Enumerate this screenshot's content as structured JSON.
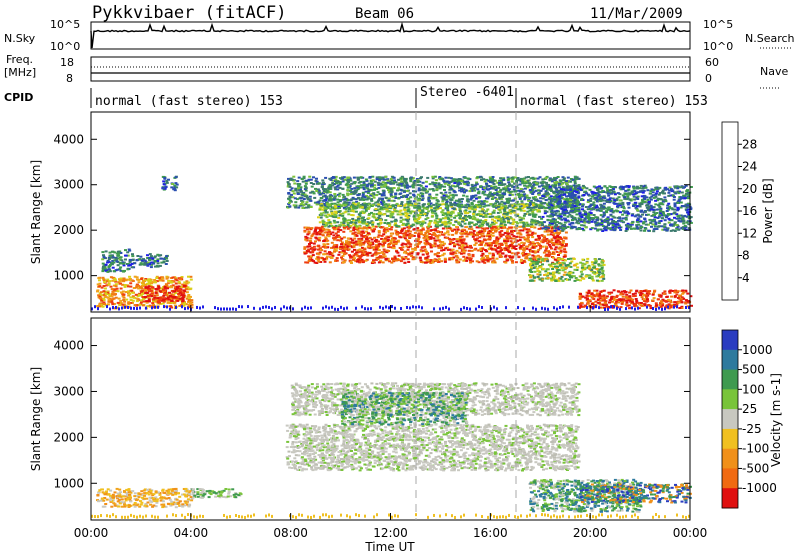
{
  "header": {
    "station": "Pykkvibaer (fitACF)",
    "beam": "Beam 06",
    "date": "11/Mar/2009"
  },
  "top_panel": {
    "left_label": "N.Sky",
    "right_label": "N.Search",
    "left_ticks": [
      "10^5",
      "10^0"
    ],
    "right_ticks": [
      "10^5",
      "10^0"
    ]
  },
  "freq_panel": {
    "left_label_line1": "Freq.",
    "left_label_line2": "[MHz]",
    "right_label": "Nave",
    "left_ticks": [
      "18",
      "8"
    ],
    "right_ticks": [
      "60",
      "0"
    ]
  },
  "cpid": {
    "label": "CPID",
    "segments": [
      {
        "text": "normal (fast stereo) 153",
        "start_hour": 0
      },
      {
        "text": "Stereo -6401",
        "start_hour": 13
      },
      {
        "text": "normal (fast stereo) 153",
        "start_hour": 17
      }
    ]
  },
  "chart_data": [
    {
      "type": "heatmap",
      "name": "power",
      "ylabel": "Slant Range [km]",
      "xlabel": "",
      "xlim": [
        0,
        24
      ],
      "ylim": [
        200,
        4600
      ],
      "y_ticks": [
        1000,
        2000,
        3000,
        4000
      ],
      "colorbar": {
        "label": "Power [dB]",
        "ticks": [
          "4",
          "8",
          "12",
          "16",
          "20",
          "24",
          "28"
        ],
        "colors": [
          "#1e1ee6",
          "#2b4fb0",
          "#3c7a6e",
          "#3f9a4f",
          "#7cc23a",
          "#d8d21a",
          "#f0a31a",
          "#f07a12",
          "#ee3b10",
          "#e01010"
        ]
      },
      "regions": [
        {
          "x": [
            0.2,
            4.0
          ],
          "y": [
            300,
            1000
          ],
          "level": 0.7
        },
        {
          "x": [
            2.0,
            3.7
          ],
          "y": [
            450,
            800
          ],
          "level": 1.0
        },
        {
          "x": [
            0.4,
            1.5
          ],
          "y": [
            1100,
            1600
          ],
          "level": 0.2
        },
        {
          "x": [
            1.5,
            3.0
          ],
          "y": [
            1200,
            1500
          ],
          "level": 0.2
        },
        {
          "x": [
            2.8,
            3.4
          ],
          "y": [
            2900,
            3200
          ],
          "level": 0.2
        },
        {
          "x": [
            7.8,
            19.5
          ],
          "y": [
            2500,
            3200
          ],
          "level": 0.25
        },
        {
          "x": [
            8.5,
            19.0
          ],
          "y": [
            1300,
            2100
          ],
          "level": 0.85
        },
        {
          "x": [
            9.0,
            18.0
          ],
          "y": [
            2100,
            2600
          ],
          "level": 0.4
        },
        {
          "x": [
            18.0,
            24.0
          ],
          "y": [
            2000,
            3000
          ],
          "level": 0.2
        },
        {
          "x": [
            17.5,
            20.5
          ],
          "y": [
            900,
            1400
          ],
          "level": 0.45
        },
        {
          "x": [
            19.5,
            24.0
          ],
          "y": [
            300,
            700
          ],
          "level": 0.9
        }
      ]
    },
    {
      "type": "heatmap",
      "name": "velocity",
      "ylabel": "Slant Range [km]",
      "xlabel": "Time UT",
      "xlim": [
        0,
        24
      ],
      "ylim": [
        200,
        4600
      ],
      "y_ticks": [
        1000,
        2000,
        3000,
        4000
      ],
      "x_ticks": [
        "00:00",
        "04:00",
        "08:00",
        "12:00",
        "16:00",
        "20:00",
        "00:00"
      ],
      "colorbar": {
        "label": "Velocity [m s-1]",
        "ticks": [
          "1000",
          "500",
          "100",
          "25",
          "-25",
          "-100",
          "-500",
          "-1000"
        ],
        "colors": [
          "#2a3cc0",
          "#2e7a9e",
          "#3f9a4f",
          "#79c43a",
          "#c8c8c0",
          "#f0c020",
          "#f0901a",
          "#f06a12",
          "#e01010"
        ]
      },
      "regions": [
        {
          "x": [
            0.2,
            4.0
          ],
          "y": [
            500,
            900
          ],
          "level": "neg"
        },
        {
          "x": [
            4.0,
            6.0
          ],
          "y": [
            700,
            900
          ],
          "level": "pos_small"
        },
        {
          "x": [
            7.8,
            19.5
          ],
          "y": [
            1300,
            2300
          ],
          "level": "grey"
        },
        {
          "x": [
            8.0,
            19.5
          ],
          "y": [
            2500,
            3200
          ],
          "level": "grey"
        },
        {
          "x": [
            10.0,
            15.0
          ],
          "y": [
            2300,
            3000
          ],
          "level": "pos"
        },
        {
          "x": [
            17.5,
            22.0
          ],
          "y": [
            400,
            1100
          ],
          "level": "pos"
        },
        {
          "x": [
            19.5,
            24.0
          ],
          "y": [
            600,
            1000
          ],
          "level": "pos_big"
        }
      ]
    }
  ]
}
